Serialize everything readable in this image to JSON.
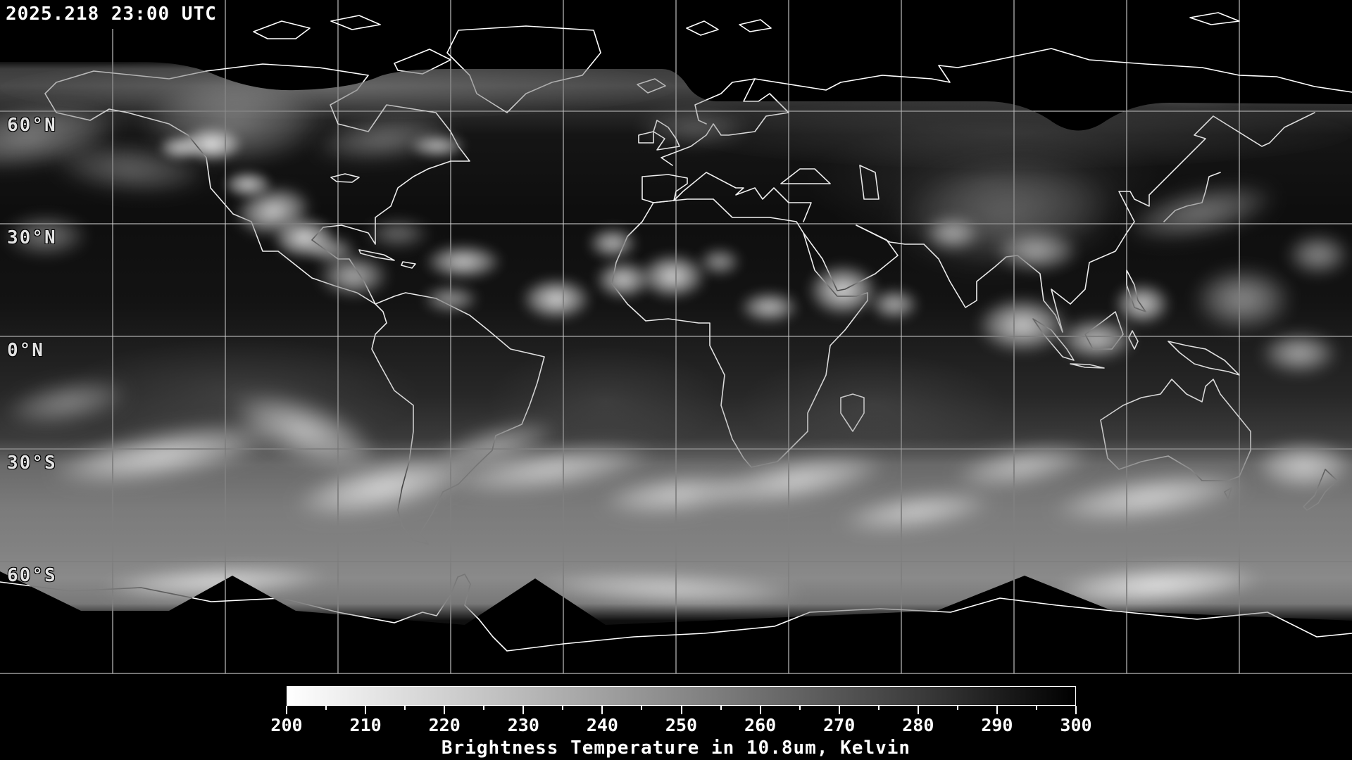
{
  "header": {
    "timestamp": "2025.218 23:00 UTC"
  },
  "map": {
    "latitude_labels": [
      "60°N",
      "30°N",
      "0°N",
      "30°S",
      "60°S"
    ],
    "grid": {
      "latitude_step_deg": 30,
      "longitude_step_deg": 30
    }
  },
  "colorbar": {
    "min": 200,
    "max": 300,
    "major_step": 10,
    "minor_step": 5,
    "tick_labels": [
      "200",
      "210",
      "220",
      "230",
      "240",
      "250",
      "260",
      "270",
      "280",
      "290",
      "300"
    ],
    "caption": "Brightness Temperature in 10.8um, Kelvin",
    "gradient_left_color": "#ffffff",
    "gradient_right_color": "#000000"
  }
}
